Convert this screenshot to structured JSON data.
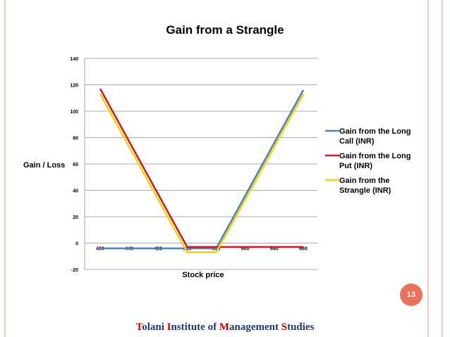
{
  "chart_data": {
    "type": "line",
    "title": "Gain from a Strangle",
    "xlabel": "Stock price",
    "ylabel": "Gain / Loss",
    "x": [
      400,
      440,
      480,
      520,
      560,
      600,
      640,
      680
    ],
    "xlim": [
      400,
      680
    ],
    "ylim": [
      -20,
      140
    ],
    "yticks": [
      -20,
      0,
      20,
      40,
      60,
      80,
      100,
      120,
      140
    ],
    "grid": true,
    "legend_position": "right",
    "series": [
      {
        "name": "Gain from the Long Call (INR)",
        "legend_lines": [
          "Gain from the Long",
          "Call (INR)"
        ],
        "color": "#4f81bd",
        "points": [
          [
            400,
            -4
          ],
          [
            560,
            -4
          ],
          [
            680,
            116
          ]
        ]
      },
      {
        "name": "Gain from the Long Put (INR)",
        "legend_lines": [
          "Gain from the Long",
          "Put (INR)"
        ],
        "color": "#c0202b",
        "points": [
          [
            400,
            117
          ],
          [
            520,
            -3
          ],
          [
            680,
            -3
          ]
        ]
      },
      {
        "name": "Gain from the Strangle (INR)",
        "legend_lines": [
          "Gain from the",
          "Strangle (INR)"
        ],
        "color": "#f5d10f",
        "points": [
          [
            400,
            113
          ],
          [
            520,
            -7
          ],
          [
            560,
            -7
          ],
          [
            680,
            113
          ]
        ]
      }
    ]
  },
  "page_number": "13",
  "footer": {
    "parts": [
      {
        "text": "T",
        "cap": true
      },
      {
        "text": "olani ",
        "cap": false
      },
      {
        "text": "I",
        "cap": true
      },
      {
        "text": "nstitute of ",
        "cap": false
      },
      {
        "text": "M",
        "cap": true
      },
      {
        "text": "anagement ",
        "cap": false
      },
      {
        "text": "S",
        "cap": true
      },
      {
        "text": "tudies",
        "cap": false
      }
    ]
  }
}
